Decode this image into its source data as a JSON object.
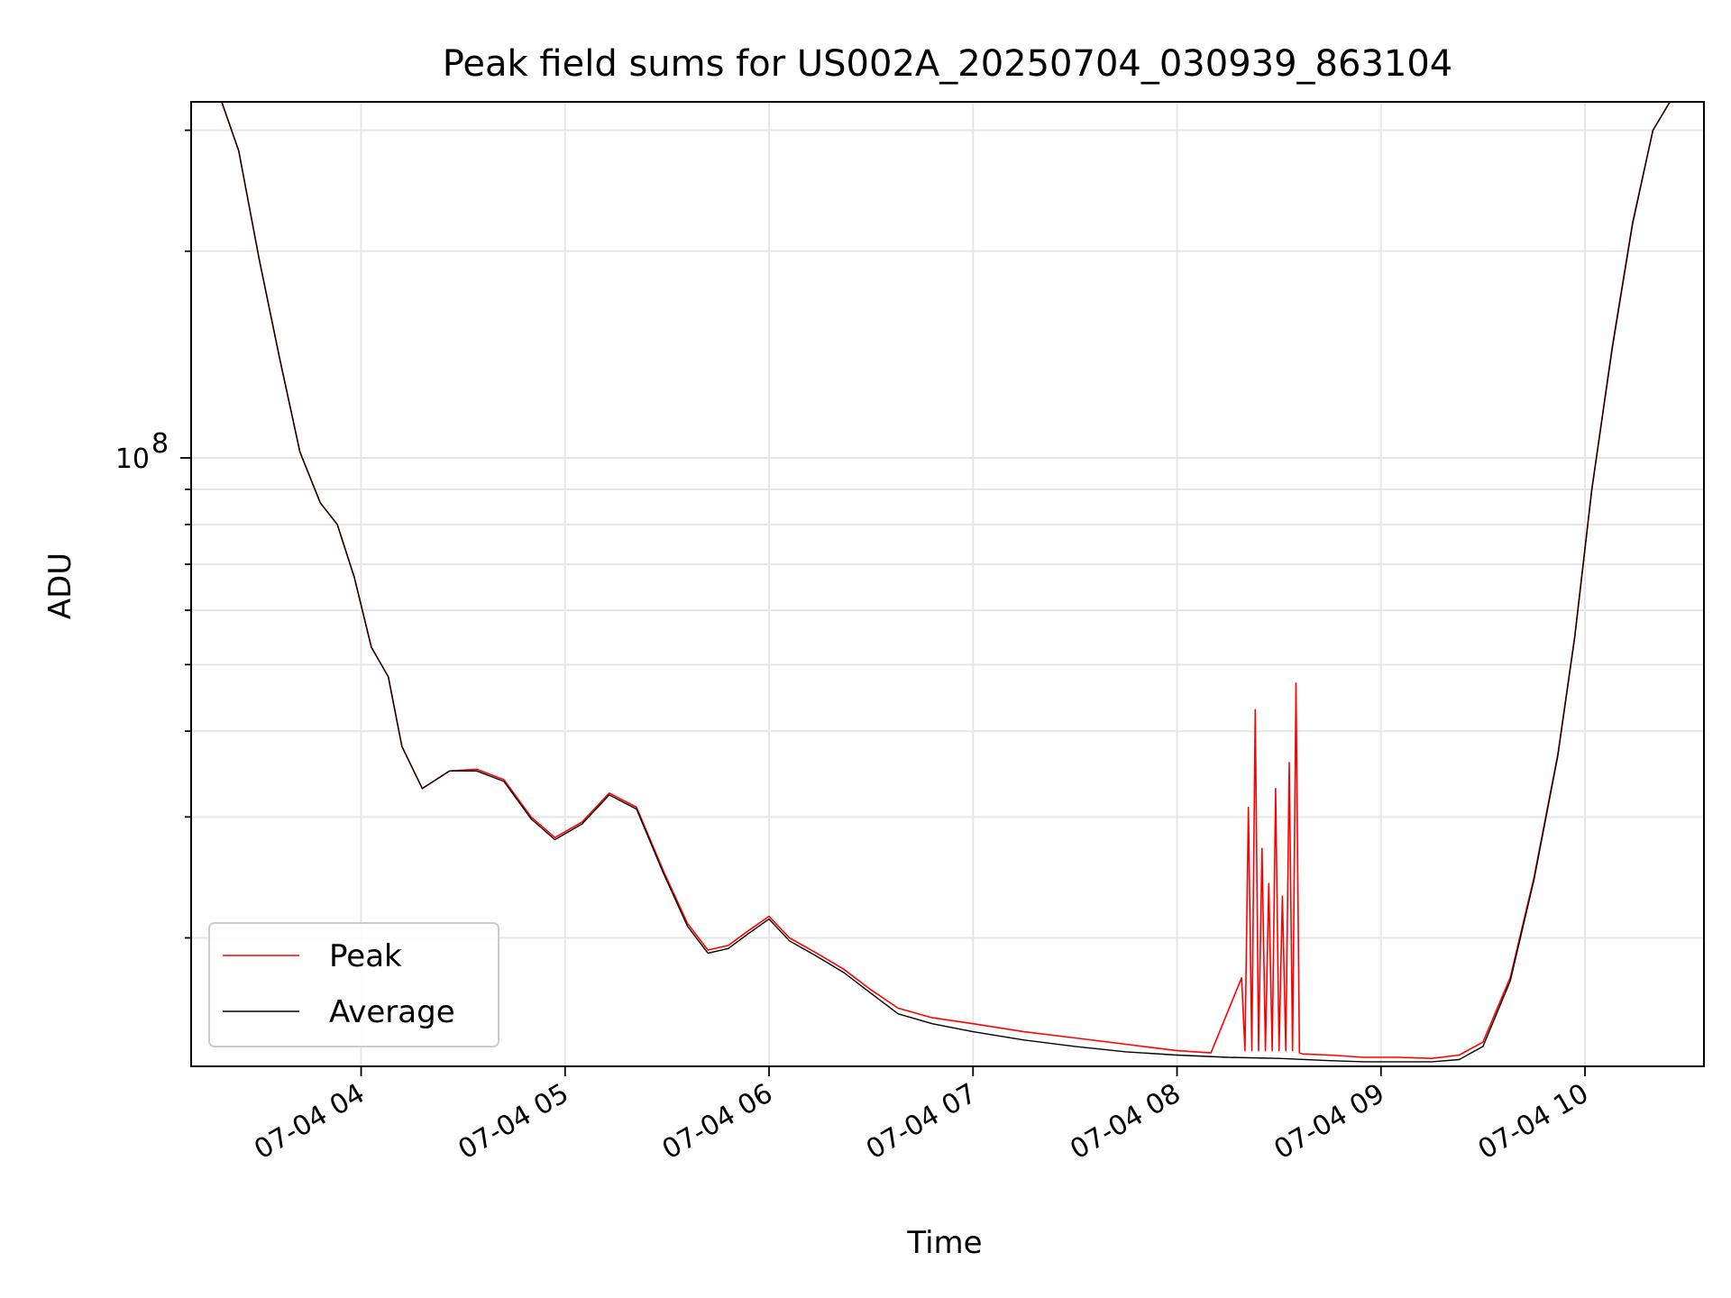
{
  "chart_data": {
    "type": "line",
    "title": "Peak field sums for US002A_20250704_030939_863104",
    "xlabel": "Time",
    "ylabel": "ADU",
    "y_scale": "log",
    "grid": true,
    "legend_placement": "lower-left",
    "xlim": [
      "2025-07-04 03:10",
      "2025-07-04 10:35"
    ],
    "ylim": [
      13000000,
      330000000
    ],
    "x_ticks": [
      {
        "value": "2025-07-04 04:00",
        "label": "07-04 04"
      },
      {
        "value": "2025-07-04 05:00",
        "label": "07-04 05"
      },
      {
        "value": "2025-07-04 06:00",
        "label": "07-04 06"
      },
      {
        "value": "2025-07-04 07:00",
        "label": "07-04 07"
      },
      {
        "value": "2025-07-04 08:00",
        "label": "07-04 08"
      },
      {
        "value": "2025-07-04 09:00",
        "label": "07-04 09"
      },
      {
        "value": "2025-07-04 10:00",
        "label": "07-04 10"
      }
    ],
    "y_major_tick": {
      "value": 100000000,
      "base": "10",
      "exponent": "8"
    },
    "y_minor_ticks": [
      20000000,
      30000000,
      40000000,
      50000000,
      60000000,
      70000000,
      80000000,
      90000000,
      200000000,
      300000000
    ],
    "series": [
      {
        "name": "Peak",
        "color": "#ff0000",
        "x": [
          "2025-07-04 03:19",
          "2025-07-04 03:24",
          "2025-07-04 03:30",
          "2025-07-04 03:36",
          "2025-07-04 03:42",
          "2025-07-04 03:48",
          "2025-07-04 03:53",
          "2025-07-04 03:58",
          "2025-07-04 04:03",
          "2025-07-04 04:08",
          "2025-07-04 04:12",
          "2025-07-04 04:18",
          "2025-07-04 04:26",
          "2025-07-04 04:34",
          "2025-07-04 04:42",
          "2025-07-04 04:50",
          "2025-07-04 04:57",
          "2025-07-04 05:05",
          "2025-07-04 05:13",
          "2025-07-04 05:21",
          "2025-07-04 05:29",
          "2025-07-04 05:36",
          "2025-07-04 05:42",
          "2025-07-04 05:48",
          "2025-07-04 05:54",
          "2025-07-04 06:00",
          "2025-07-04 06:06",
          "2025-07-04 06:14",
          "2025-07-04 06:22",
          "2025-07-04 06:30",
          "2025-07-04 06:38",
          "2025-07-04 06:48",
          "2025-07-04 07:00",
          "2025-07-04 07:15",
          "2025-07-04 07:30",
          "2025-07-04 07:45",
          "2025-07-04 08:00",
          "2025-07-04 08:10",
          "2025-07-04 08:19",
          "2025-07-04 08:20",
          "2025-07-04 08:21",
          "2025-07-04 08:22",
          "2025-07-04 08:23",
          "2025-07-04 08:24",
          "2025-07-04 08:25",
          "2025-07-04 08:26",
          "2025-07-04 08:27",
          "2025-07-04 08:28",
          "2025-07-04 08:29",
          "2025-07-04 08:30",
          "2025-07-04 08:31",
          "2025-07-04 08:32",
          "2025-07-04 08:33",
          "2025-07-04 08:34",
          "2025-07-04 08:35",
          "2025-07-04 08:36",
          "2025-07-04 08:37",
          "2025-07-04 08:45",
          "2025-07-04 08:55",
          "2025-07-04 09:05",
          "2025-07-04 09:15",
          "2025-07-04 09:23",
          "2025-07-04 09:30",
          "2025-07-04 09:38",
          "2025-07-04 09:45",
          "2025-07-04 09:52",
          "2025-07-04 09:57",
          "2025-07-04 10:02",
          "2025-07-04 10:08",
          "2025-07-04 10:14",
          "2025-07-04 10:20",
          "2025-07-04 10:25"
        ],
        "y": [
          330000000,
          280000000,
          195000000,
          140000000,
          102000000,
          86000000,
          80000000,
          67000000,
          53000000,
          48000000,
          38000000,
          33000000,
          35000000,
          35200000,
          34000000,
          30000000,
          28000000,
          29500000,
          32500000,
          31000000,
          25000000,
          21000000,
          19200000,
          19500000,
          20500000,
          21500000,
          20000000,
          19000000,
          18000000,
          16800000,
          15800000,
          15300000,
          15000000,
          14600000,
          14300000,
          14000000,
          13700000,
          13600000,
          17500000,
          13700000,
          31000000,
          13700000,
          43000000,
          13700000,
          27000000,
          13700000,
          24000000,
          13700000,
          33000000,
          13700000,
          23000000,
          13700000,
          36000000,
          13700000,
          47000000,
          13600000,
          13550000,
          13500000,
          13400000,
          13400000,
          13350000,
          13500000,
          14100000,
          17500000,
          24500000,
          37000000,
          55000000,
          90000000,
          145000000,
          220000000,
          300000000,
          330000000
        ]
      },
      {
        "name": "Average",
        "color": "#000000",
        "x": [
          "2025-07-04 03:19",
          "2025-07-04 03:24",
          "2025-07-04 03:30",
          "2025-07-04 03:36",
          "2025-07-04 03:42",
          "2025-07-04 03:48",
          "2025-07-04 03:53",
          "2025-07-04 03:58",
          "2025-07-04 04:03",
          "2025-07-04 04:08",
          "2025-07-04 04:12",
          "2025-07-04 04:18",
          "2025-07-04 04:26",
          "2025-07-04 04:34",
          "2025-07-04 04:42",
          "2025-07-04 04:50",
          "2025-07-04 04:57",
          "2025-07-04 05:05",
          "2025-07-04 05:13",
          "2025-07-04 05:21",
          "2025-07-04 05:29",
          "2025-07-04 05:36",
          "2025-07-04 05:42",
          "2025-07-04 05:48",
          "2025-07-04 05:54",
          "2025-07-04 06:00",
          "2025-07-04 06:06",
          "2025-07-04 06:14",
          "2025-07-04 06:22",
          "2025-07-04 06:30",
          "2025-07-04 06:38",
          "2025-07-04 06:48",
          "2025-07-04 07:00",
          "2025-07-04 07:15",
          "2025-07-04 07:30",
          "2025-07-04 07:45",
          "2025-07-04 08:00",
          "2025-07-04 08:15",
          "2025-07-04 08:30",
          "2025-07-04 08:45",
          "2025-07-04 08:55",
          "2025-07-04 09:05",
          "2025-07-04 09:15",
          "2025-07-04 09:23",
          "2025-07-04 09:30",
          "2025-07-04 09:38",
          "2025-07-04 09:45",
          "2025-07-04 09:52",
          "2025-07-04 09:57",
          "2025-07-04 10:02",
          "2025-07-04 10:08",
          "2025-07-04 10:14",
          "2025-07-04 10:20",
          "2025-07-04 10:25"
        ],
        "y": [
          330000000,
          280000000,
          195000000,
          140000000,
          102000000,
          86000000,
          80000000,
          67000000,
          53000000,
          48000000,
          38000000,
          33000000,
          35000000,
          35000000,
          33800000,
          29800000,
          27800000,
          29300000,
          32300000,
          30800000,
          24800000,
          20800000,
          19000000,
          19300000,
          20300000,
          21300000,
          19800000,
          18800000,
          17800000,
          16600000,
          15500000,
          15000000,
          14600000,
          14200000,
          13900000,
          13650000,
          13500000,
          13400000,
          13350000,
          13250000,
          13200000,
          13200000,
          13200000,
          13300000,
          13900000,
          17300000,
          24300000,
          36800000,
          54800000,
          89800000,
          144000000,
          219000000,
          300000000,
          330000000
        ]
      }
    ]
  }
}
